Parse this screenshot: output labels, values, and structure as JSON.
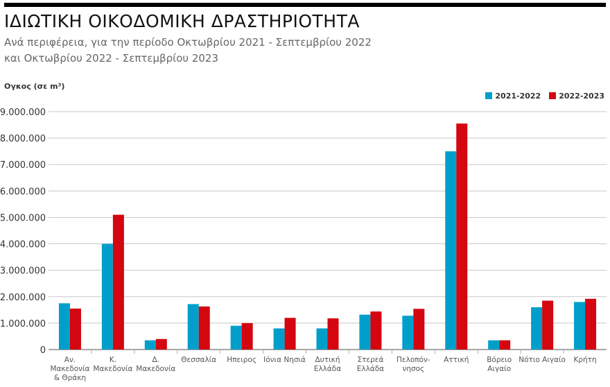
{
  "title": "ΙΔΙΩΤΙΚΗ ΟΙΚΟΔΟΜΙΚΗ ΔΡΑΣΤΗΡΙΟΤΗΤΑ",
  "subtitle_line1": "Ανά περιφέρεια, για την περίοδο Οκτωβρίου 2021 - Σεπτεμβρίου 2022",
  "subtitle_line2": "και Οκτωβρίου 2022 - Σεπτεμβρίου 2023",
  "chart_data": {
    "type": "bar",
    "ylabel": "Ογκος (σε m³)",
    "ylim": [
      0,
      9000000
    ],
    "yticks": [
      "0",
      "1.000.000",
      "2.000.000",
      "3.000.000",
      "4.000.000",
      "5.000.000",
      "6.000.000",
      "7.000.000",
      "8.000.000",
      "9.000.000"
    ],
    "grid": true,
    "legend_position": "top-right",
    "categories": [
      [
        "Αν.",
        "Μακεδονία",
        "& Θράκη"
      ],
      [
        "Κ.",
        "Μακεδονία"
      ],
      [
        "Δ.",
        "Μακεδονία"
      ],
      [
        "Θεσσαλία"
      ],
      [
        "Ηπειρος"
      ],
      [
        "Ιόνια Νησιά"
      ],
      [
        "Δυτική",
        "Ελλάδα"
      ],
      [
        "Στερεά",
        "Ελλάδα"
      ],
      [
        "Πελοπόν-",
        "νησος"
      ],
      [
        "Αττική"
      ],
      [
        "Βόρειο",
        "Αιγαίο"
      ],
      [
        "Νότιο Αιγαίο"
      ],
      [
        "Κρήτη"
      ]
    ],
    "series": [
      {
        "name": "2021-2022",
        "color": "#009fcb",
        "values": [
          1750000,
          4000000,
          350000,
          1720000,
          900000,
          800000,
          800000,
          1320000,
          1280000,
          7500000,
          350000,
          1600000,
          1800000
        ]
      },
      {
        "name": "2022-2023",
        "color": "#d4060f",
        "values": [
          1550000,
          5100000,
          400000,
          1630000,
          1000000,
          1200000,
          1180000,
          1440000,
          1540000,
          8550000,
          350000,
          1850000,
          1920000
        ]
      }
    ]
  }
}
